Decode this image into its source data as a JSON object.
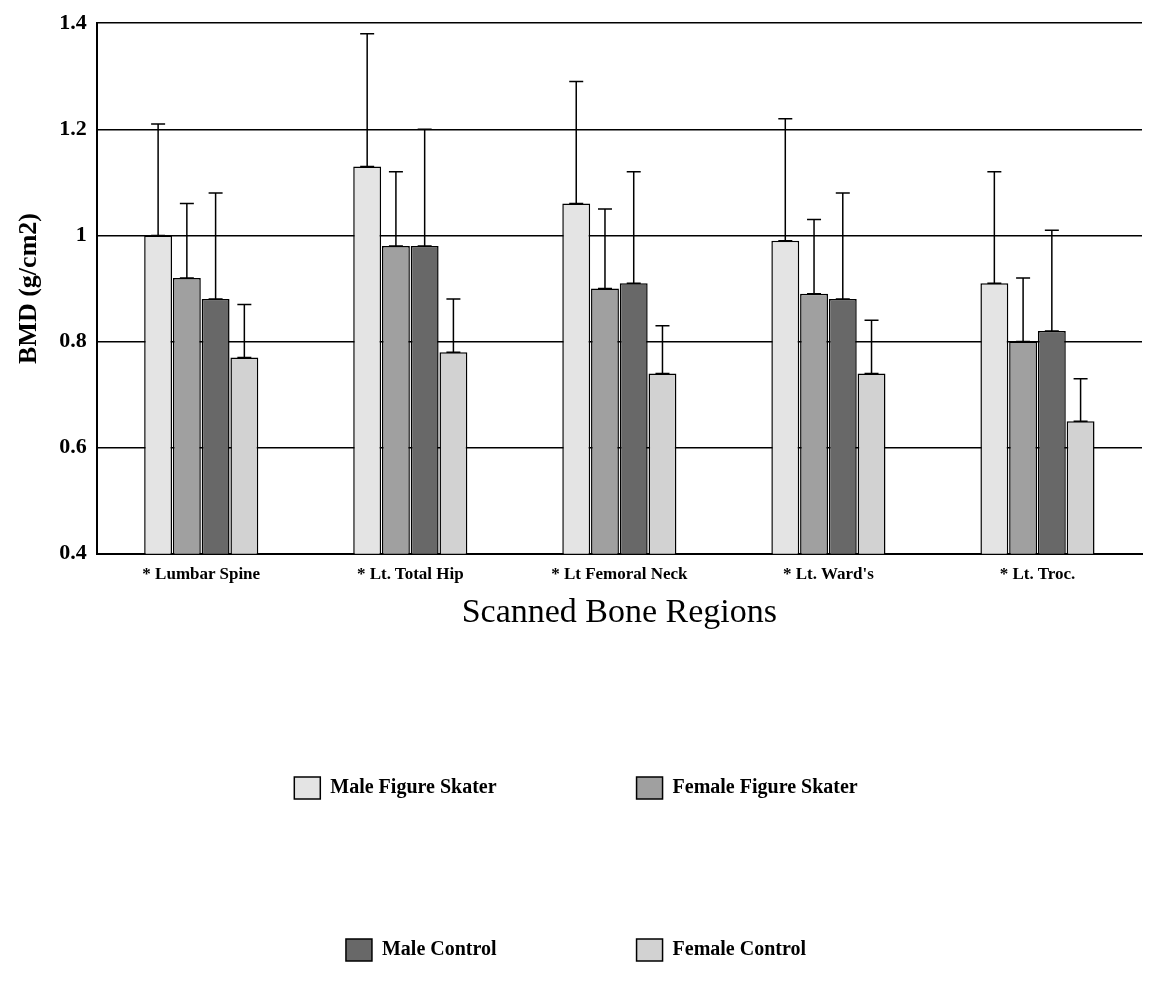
{
  "chart_data": {
    "type": "bar",
    "xlabel": "Scanned Bone Regions",
    "ylabel": "BMD (g/cm2)",
    "categories": [
      "* Lumbar Spine",
      "* Lt. Total Hip",
      "* Lt Femoral Neck",
      "* Lt. Ward's",
      "* Lt. Troc."
    ],
    "series": [
      {
        "name": "Male Figure Skater",
        "color": "#e4e4e4",
        "values": [
          1.0,
          1.13,
          1.06,
          0.99,
          0.91
        ],
        "errors": [
          [
            1.0,
            1.21
          ],
          [
            1.13,
            1.38
          ],
          [
            1.06,
            1.29
          ],
          [
            0.99,
            1.22
          ],
          [
            0.91,
            1.12
          ]
        ]
      },
      {
        "name": "Female Figure Skater",
        "color": "#a0a0a0",
        "values": [
          0.92,
          0.98,
          0.9,
          0.89,
          0.8
        ],
        "errors": [
          [
            0.92,
            1.06
          ],
          [
            0.98,
            1.12
          ],
          [
            0.9,
            1.05
          ],
          [
            0.89,
            1.03
          ],
          [
            0.8,
            0.92
          ]
        ]
      },
      {
        "name": "Male Control",
        "color": "#686868",
        "values": [
          0.88,
          0.98,
          0.91,
          0.88,
          0.82
        ],
        "errors": [
          [
            0.88,
            1.08
          ],
          [
            0.98,
            1.2
          ],
          [
            0.91,
            1.12
          ],
          [
            0.88,
            1.08
          ],
          [
            0.82,
            1.01
          ]
        ]
      },
      {
        "name": "Female Control",
        "color": "#d2d2d2",
        "values": [
          0.77,
          0.78,
          0.74,
          0.74,
          0.65
        ],
        "errors": [
          [
            0.77,
            0.87
          ],
          [
            0.78,
            0.88
          ],
          [
            0.74,
            0.83
          ],
          [
            0.74,
            0.84
          ],
          [
            0.65,
            0.73
          ]
        ]
      }
    ],
    "ylim": [
      0.4,
      1.4
    ],
    "yticks": [
      0.4,
      0.6,
      0.8,
      1,
      1.2,
      1.4
    ],
    "grid": "y",
    "legend": "bottom"
  }
}
